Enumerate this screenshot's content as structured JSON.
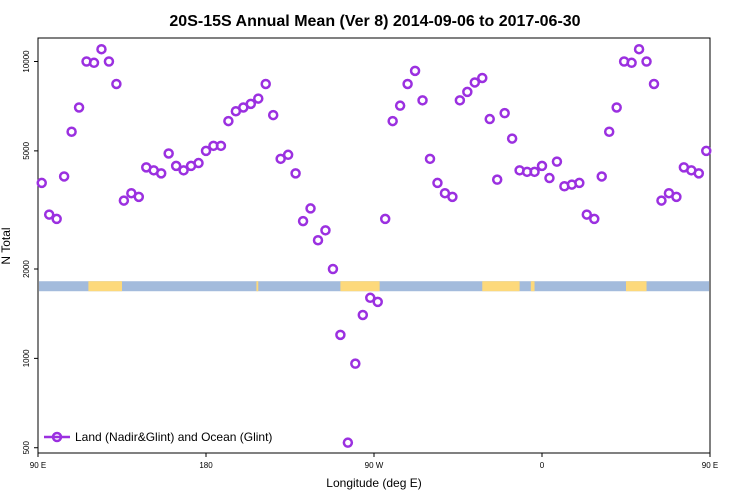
{
  "chart_data": {
    "type": "scatter",
    "title": "20S-15S Annual Mean (Ver 8)   2014-09-06 to 2017-06-30",
    "xlabel": "Longitude (deg E)",
    "ylabel": "N Total",
    "y_scale": "log",
    "xlim": [
      90,
      450
    ],
    "ylim": [
      480,
      12000
    ],
    "x_ticks": [
      {
        "value": 90,
        "label": "90 E"
      },
      {
        "value": 180,
        "label": "180"
      },
      {
        "value": 270,
        "label": "90 W"
      },
      {
        "value": 360,
        "label": "0"
      },
      {
        "value": 450,
        "label": "90 E"
      }
    ],
    "y_ticks": [
      {
        "value": 500,
        "label": "500"
      },
      {
        "value": 1000,
        "label": "1000"
      },
      {
        "value": 2000,
        "label": "2000"
      },
      {
        "value": 5000,
        "label": "5000"
      },
      {
        "value": 10000,
        "label": "10000"
      }
    ],
    "series": [
      {
        "name": "Land (Nadir&Glint) and Ocean (Glint)",
        "color": "#9b30e0",
        "points": [
          [
            92,
            3900
          ],
          [
            96,
            3050
          ],
          [
            100,
            2950
          ],
          [
            104,
            4100
          ],
          [
            108,
            5800
          ],
          [
            112,
            7000
          ],
          [
            116,
            10000
          ],
          [
            120,
            9900
          ],
          [
            124,
            11000
          ],
          [
            128,
            10000
          ],
          [
            132,
            8400
          ],
          [
            136,
            3400
          ],
          [
            140,
            3600
          ],
          [
            144,
            3500
          ],
          [
            148,
            4400
          ],
          [
            152,
            4300
          ],
          [
            156,
            4200
          ],
          [
            160,
            4900
          ],
          [
            164,
            4450
          ],
          [
            168,
            4300
          ],
          [
            172,
            4450
          ],
          [
            176,
            4550
          ],
          [
            180,
            5000
          ],
          [
            184,
            5200
          ],
          [
            188,
            5200
          ],
          [
            192,
            6300
          ],
          [
            196,
            6800
          ],
          [
            200,
            7000
          ],
          [
            204,
            7200
          ],
          [
            208,
            7500
          ],
          [
            212,
            8400
          ],
          [
            216,
            6600
          ],
          [
            220,
            4700
          ],
          [
            224,
            4850
          ],
          [
            228,
            4200
          ],
          [
            232,
            2900
          ],
          [
            236,
            3200
          ],
          [
            240,
            2500
          ],
          [
            244,
            2700
          ],
          [
            248,
            2000
          ],
          [
            252,
            1200
          ],
          [
            256,
            520
          ],
          [
            260,
            960
          ],
          [
            264,
            1400
          ],
          [
            268,
            1600
          ],
          [
            272,
            1550
          ],
          [
            276,
            2950
          ],
          [
            280,
            6300
          ],
          [
            284,
            7100
          ],
          [
            288,
            8400
          ],
          [
            292,
            9300
          ],
          [
            296,
            7400
          ],
          [
            300,
            4700
          ],
          [
            304,
            3900
          ],
          [
            308,
            3600
          ],
          [
            312,
            3500
          ],
          [
            316,
            7400
          ],
          [
            320,
            7900
          ],
          [
            324,
            8500
          ],
          [
            328,
            8800
          ],
          [
            332,
            6400
          ],
          [
            336,
            4000
          ],
          [
            340,
            6700
          ],
          [
            344,
            5500
          ],
          [
            348,
            4300
          ],
          [
            352,
            4250
          ],
          [
            356,
            4250
          ],
          [
            360,
            4450
          ],
          [
            364,
            4050
          ],
          [
            368,
            4600
          ],
          [
            372,
            3800
          ],
          [
            376,
            3850
          ],
          [
            380,
            3900
          ],
          [
            384,
            3050
          ],
          [
            388,
            2950
          ],
          [
            392,
            4100
          ],
          [
            396,
            5800
          ],
          [
            400,
            7000
          ],
          [
            404,
            10000
          ],
          [
            408,
            9900
          ],
          [
            412,
            11000
          ],
          [
            416,
            10000
          ],
          [
            420,
            8400
          ],
          [
            424,
            3400
          ],
          [
            428,
            3600
          ],
          [
            432,
            3500
          ],
          [
            436,
            4400
          ],
          [
            440,
            4300
          ],
          [
            444,
            4200
          ],
          [
            448,
            5000
          ]
        ]
      }
    ],
    "surface_band": {
      "y": 1750,
      "ocean_color": "#a3bbdc",
      "land_color": "#fdd97b",
      "land_ranges": [
        [
          117,
          135
        ],
        [
          207,
          208
        ],
        [
          252,
          273
        ],
        [
          328,
          348
        ],
        [
          354,
          356
        ],
        [
          405,
          416
        ]
      ]
    },
    "legend_position": "bottom-left",
    "grid": false
  }
}
